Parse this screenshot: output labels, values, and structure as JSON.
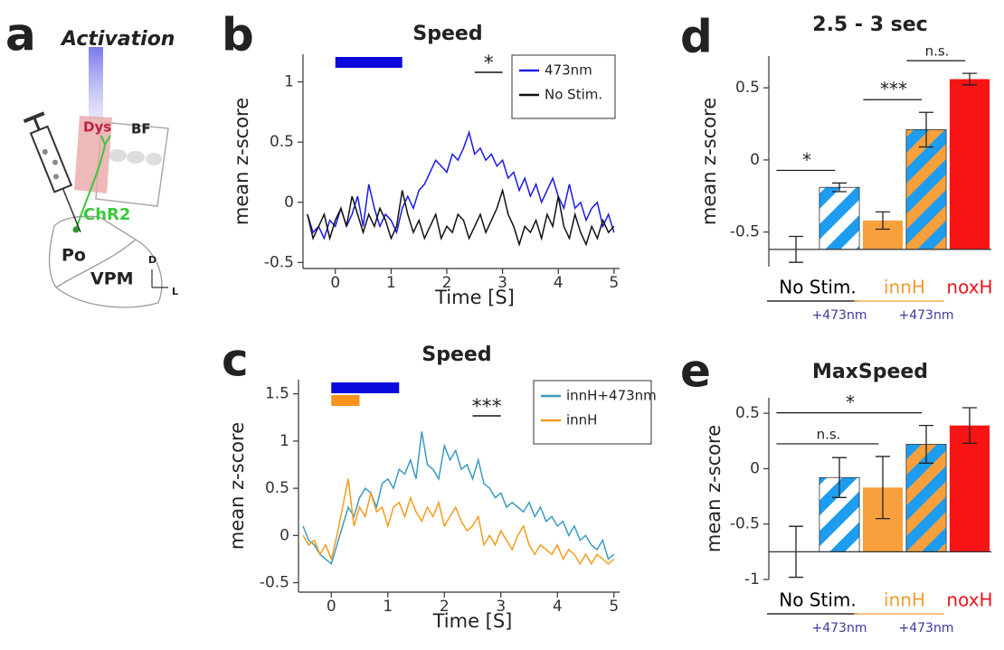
{
  "panel_labels": [
    "a",
    "b",
    "c",
    "d",
    "e"
  ],
  "diagram": {
    "title": "Activation",
    "labels": [
      "Dys",
      "BF",
      "ChR2",
      "Po",
      "VPM",
      "D",
      "L"
    ]
  },
  "chart_data": [
    {
      "type": "line",
      "title": "Speed",
      "xlabel": "Time [S]",
      "ylabel": "mean z-score",
      "x": [
        -0.5,
        -0.4,
        -0.3,
        -0.2,
        -0.1,
        0,
        0.1,
        0.2,
        0.3,
        0.4,
        0.5,
        0.6,
        0.7,
        0.8,
        0.9,
        1,
        1.1,
        1.2,
        1.3,
        1.4,
        1.5,
        1.6,
        1.7,
        1.8,
        1.9,
        2,
        2.1,
        2.2,
        2.3,
        2.4,
        2.5,
        2.6,
        2.7,
        2.8,
        2.9,
        3,
        3.1,
        3.2,
        3.3,
        3.4,
        3.5,
        3.6,
        3.7,
        3.8,
        3.9,
        4,
        4.1,
        4.2,
        4.3,
        4.4,
        4.5,
        4.6,
        4.7,
        4.8,
        4.9,
        5
      ],
      "xlim": [
        -0.58,
        5.1
      ],
      "ylim": [
        -0.55,
        1.23
      ],
      "xticks": [
        0,
        1,
        2,
        3,
        4,
        5
      ],
      "yticks": [
        -0.5,
        0,
        0.5,
        1
      ],
      "legend": "upper right",
      "series": [
        {
          "name": "473nm",
          "color": "#1a1ae6",
          "values": [
            -0.1,
            -0.25,
            -0.2,
            -0.3,
            -0.15,
            -0.2,
            -0.05,
            -0.2,
            -0.1,
            0.05,
            -0.2,
            0.15,
            -0.05,
            -0.2,
            -0.1,
            -0.15,
            -0.25,
            -0.05,
            0.05,
            -0.05,
            0.1,
            0.15,
            0.25,
            0.35,
            0.3,
            0.25,
            0.4,
            0.35,
            0.45,
            0.58,
            0.4,
            0.45,
            0.35,
            0.4,
            0.3,
            0.35,
            0.2,
            0.25,
            0.1,
            0.2,
            0.05,
            0.15,
            0.0,
            0.1,
            0.2,
            0.05,
            -0.05,
            0.15,
            -0.05,
            0.0,
            -0.15,
            -0.05,
            0.0,
            -0.2,
            -0.1,
            -0.25
          ]
        },
        {
          "name": "No Stim.",
          "color": "#111111",
          "values": [
            -0.1,
            -0.3,
            -0.2,
            -0.1,
            -0.3,
            -0.15,
            -0.05,
            -0.2,
            0.05,
            -0.1,
            -0.25,
            -0.1,
            -0.2,
            -0.05,
            -0.15,
            -0.3,
            -0.2,
            0.1,
            -0.1,
            -0.25,
            -0.15,
            -0.3,
            -0.2,
            -0.1,
            -0.3,
            -0.2,
            -0.25,
            -0.1,
            -0.15,
            -0.3,
            -0.2,
            -0.1,
            -0.25,
            -0.15,
            -0.05,
            0.1,
            -0.1,
            -0.2,
            -0.35,
            -0.2,
            -0.25,
            -0.15,
            -0.3,
            -0.1,
            -0.2,
            0.05,
            -0.2,
            -0.3,
            -0.1,
            -0.25,
            -0.35,
            -0.2,
            -0.3,
            -0.15,
            -0.25,
            -0.2
          ]
        }
      ],
      "stim_bars": [
        {
          "start": 0,
          "end": 1.2,
          "color": "#0a0adc"
        }
      ],
      "significance": [
        {
          "label": "*",
          "start": 2.5,
          "end": 3
        }
      ]
    },
    {
      "type": "line",
      "title": "Speed",
      "xlabel": "Time [S]",
      "ylabel": "mean z-score",
      "x": [
        -0.5,
        -0.4,
        -0.3,
        -0.2,
        -0.1,
        0,
        0.1,
        0.2,
        0.3,
        0.4,
        0.5,
        0.6,
        0.7,
        0.8,
        0.9,
        1,
        1.1,
        1.2,
        1.3,
        1.4,
        1.5,
        1.6,
        1.7,
        1.8,
        1.9,
        2,
        2.1,
        2.2,
        2.3,
        2.4,
        2.5,
        2.6,
        2.7,
        2.8,
        2.9,
        3,
        3.1,
        3.2,
        3.3,
        3.4,
        3.5,
        3.6,
        3.7,
        3.8,
        3.9,
        4,
        4.1,
        4.2,
        4.3,
        4.4,
        4.5,
        4.6,
        4.7,
        4.8,
        4.9,
        5
      ],
      "xlim": [
        -0.58,
        5.1
      ],
      "ylim": [
        -0.6,
        1.65
      ],
      "xticks": [
        0,
        1,
        2,
        3,
        4,
        5
      ],
      "yticks": [
        -0.5,
        0,
        0.5,
        1,
        1.5
      ],
      "legend": "upper right",
      "series": [
        {
          "name": "innH+473nm",
          "color": "#3a9bc0",
          "values": [
            0.1,
            -0.05,
            -0.1,
            -0.2,
            -0.25,
            -0.3,
            -0.1,
            0.1,
            0.3,
            0.2,
            0.4,
            0.5,
            0.45,
            0.3,
            0.55,
            0.6,
            0.5,
            0.7,
            0.65,
            0.8,
            0.6,
            1.1,
            0.75,
            0.7,
            0.6,
            0.95,
            0.8,
            0.9,
            0.7,
            0.75,
            0.6,
            0.8,
            0.55,
            0.5,
            0.4,
            0.45,
            0.3,
            0.35,
            0.3,
            0.25,
            0.35,
            0.2,
            0.3,
            0.15,
            0.2,
            0.1,
            0.15,
            0.0,
            0.1,
            -0.05,
            0.0,
            -0.1,
            -0.15,
            -0.05,
            -0.25,
            -0.2
          ]
        },
        {
          "name": "innH",
          "color": "#f39c1e",
          "values": [
            0.0,
            -0.1,
            -0.05,
            -0.2,
            -0.1,
            -0.25,
            0.0,
            0.3,
            0.6,
            0.1,
            0.3,
            0.2,
            0.45,
            0.25,
            0.3,
            0.1,
            0.3,
            0.35,
            0.2,
            0.4,
            0.25,
            0.15,
            0.3,
            0.2,
            0.35,
            0.1,
            0.2,
            0.3,
            0.15,
            0.05,
            0.1,
            0.2,
            -0.1,
            0.0,
            -0.1,
            0.05,
            -0.05,
            -0.15,
            0.0,
            0.1,
            -0.1,
            -0.2,
            -0.1,
            -0.15,
            -0.2,
            -0.1,
            -0.25,
            -0.15,
            -0.2,
            -0.3,
            -0.2,
            -0.3,
            -0.2,
            -0.25,
            -0.3,
            -0.25
          ]
        }
      ],
      "stim_bars": [
        {
          "start": 0,
          "end": 1.2,
          "color": "#0a0adc"
        },
        {
          "start": 0,
          "end": 0.5,
          "color": "#f7931e"
        }
      ],
      "significance": [
        {
          "label": "***",
          "start": 2.5,
          "end": 3
        }
      ]
    },
    {
      "type": "bar",
      "title": "2.5 - 3 sec",
      "ylabel": "mean z-score",
      "ylim": [
        -0.74,
        0.72
      ],
      "yticks": [
        -0.5,
        0,
        0.5
      ],
      "categories": [
        null,
        "+473nm",
        null,
        "+473nm",
        null
      ],
      "values": [
        -0.62,
        -0.19,
        -0.42,
        0.21,
        0.56
      ],
      "errors": [
        0.09,
        0.03,
        0.06,
        0.12,
        0.04
      ],
      "colors": [
        "#ffffff",
        "#ffffff",
        "#f7a03c",
        "#f7a03c",
        "#f81414"
      ],
      "hatch": [
        null,
        "#1e9cf0",
        null,
        "#1e9cf0",
        null
      ],
      "groups": [
        {
          "label": "No Stim.",
          "color": "#000000"
        },
        {
          "label": "innH",
          "color": "#f39c2e"
        },
        {
          "label": "noxH",
          "color": "#e8161c"
        }
      ],
      "significance": [
        {
          "label": "*",
          "from": 0,
          "to": 1
        },
        {
          "label": "***",
          "from": 2,
          "to": 3
        },
        {
          "label": "n.s.",
          "from": 3,
          "to": 4
        }
      ]
    },
    {
      "type": "bar",
      "title": "MaxSpeed",
      "ylabel": "mean z-score",
      "ylim": [
        -1,
        0.64
      ],
      "yticks": [
        -1,
        -0.5,
        0,
        0.5
      ],
      "categories": [
        null,
        "+473nm",
        null,
        "+473nm",
        null
      ],
      "values": [
        -0.75,
        -0.08,
        -0.17,
        0.22,
        0.39
      ],
      "errors": [
        0.23,
        0.18,
        0.28,
        0.17,
        0.16
      ],
      "colors": [
        "#ffffff",
        "#ffffff",
        "#f7a03c",
        "#f7a03c",
        "#f81414"
      ],
      "hatch": [
        null,
        "#1e9cf0",
        null,
        "#1e9cf0",
        null
      ],
      "groups": [
        {
          "label": "No Stim.",
          "color": "#000000"
        },
        {
          "label": "innH",
          "color": "#f39c2e"
        },
        {
          "label": "noxH",
          "color": "#e8161c"
        }
      ],
      "significance": [
        {
          "label": "n.s.",
          "from": 0,
          "to": 2
        },
        {
          "label": "*",
          "from": 0,
          "to": 3
        }
      ]
    }
  ]
}
